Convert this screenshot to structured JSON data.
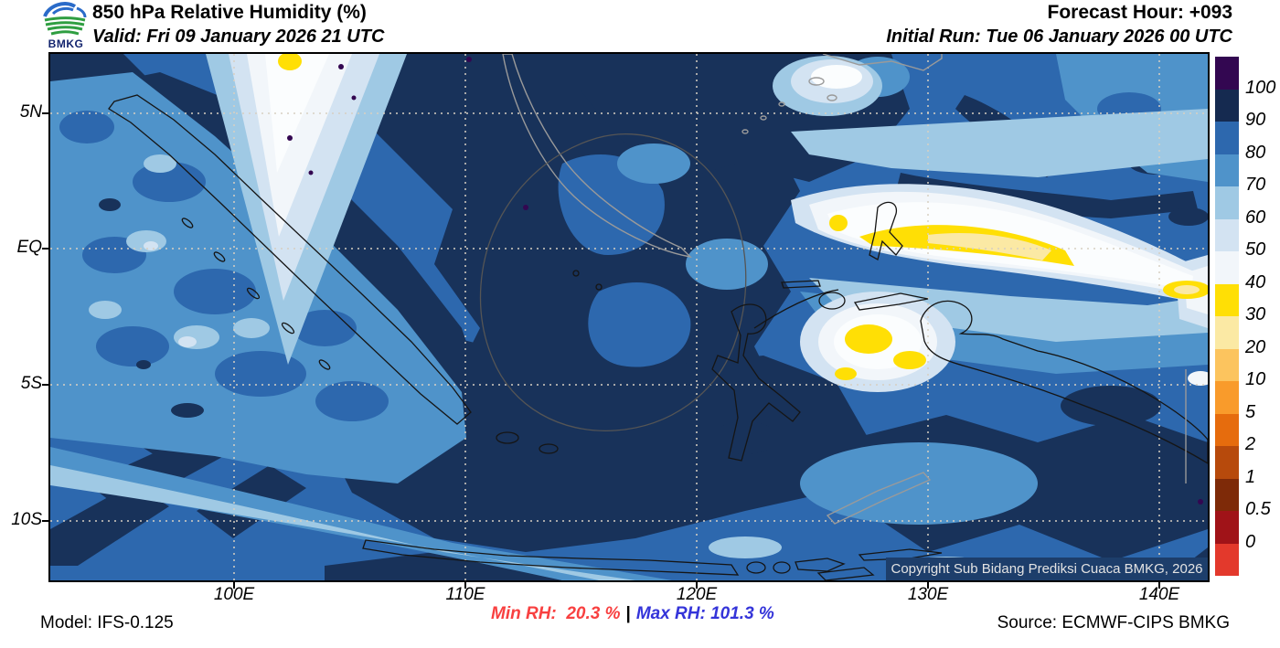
{
  "header": {
    "logo_text": "BMKG",
    "title": "850 hPa Relative Humidity (%)",
    "valid_label": "Valid: Fri 09 January 2026 21 UTC",
    "forecast_hour_label": "Forecast Hour: +093",
    "initial_run_label": "Initial Run: Tue 06 January 2026 00 UTC"
  },
  "map": {
    "lat_labels": [
      "5N",
      "EQ",
      "5S",
      "10S"
    ],
    "lon_labels": [
      "100E",
      "110E",
      "120E",
      "130E",
      "140E"
    ],
    "copyright": "Copyright Sub Bidang Prediksi Cuaca BMKG, 2026"
  },
  "colorbar": {
    "tick_labels": [
      "100",
      "90",
      "80",
      "70",
      "60",
      "50",
      "40",
      "30",
      "20",
      "10",
      "5",
      "2",
      "1",
      "0.5",
      "0"
    ],
    "colors_top_to_bottom": [
      "#330751",
      "#152a50",
      "#2d68ae",
      "#4f93ca",
      "#9fc9e4",
      "#d3e3f2",
      "#f2f6fa",
      "#ffdf05",
      "#fbe9a4",
      "#fcc45e",
      "#f99b2b",
      "#e66c0d",
      "#b74a0c",
      "#7e2a08",
      "#a01318",
      "#e3392c"
    ]
  },
  "footer": {
    "model_label": "Model: IFS-0.125",
    "min_rh_label": "Min RH:  20.3 %",
    "separator": "|",
    "max_rh_label": "Max RH: 101.3 %",
    "source_label": "Source: ECMWF-CIPS BMKG",
    "min_rh_color": "#f84040",
    "max_rh_color": "#3434d9"
  }
}
